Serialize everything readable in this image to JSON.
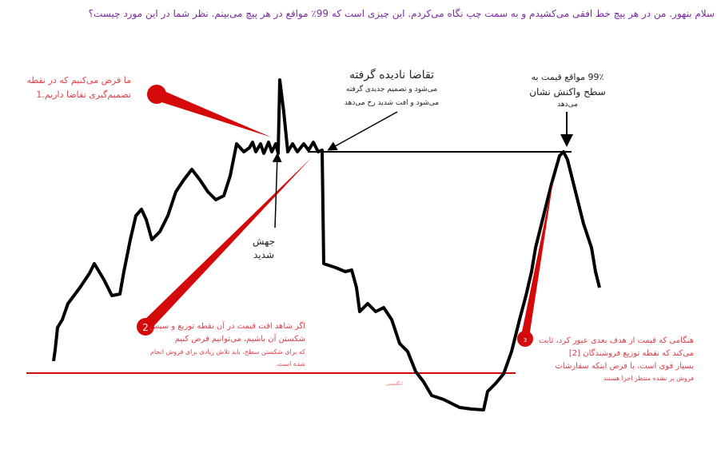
{
  "question": "سلام بنهور. من در هر پیچ خط افقی می‌کشیدم و به سمت چپ نگاه می‌کردم. این چیزی است که 99٪ مواقع در هر پیچ می‌بینم. نظر شما در این مورد چیست؟",
  "annotations": {
    "point1": {
      "number": "1",
      "lines": [
        "ما فرض می‌کنیم که در نقطه",
        "تصمیم‌گیری تقاضا داریم.1"
      ]
    },
    "unseen_demand": {
      "title": "تقاضا نادیده گرفته",
      "lines": [
        "می‌شود و تصمیم جدیدی گرفته",
        "می‌شود و افت شدید رخ می‌دهد"
      ]
    },
    "reaction": {
      "lines": [
        "99٪ مواقع قیمت به",
        "سطح واکنش نشان",
        "می‌دهد"
      ]
    },
    "spike": {
      "lines": [
        "جهش",
        "شدید"
      ]
    },
    "point2": {
      "number": "2",
      "lines": [
        "اگر شاهد افت قیمت در آن نقطه توزیع و سپس",
        "شکستن آن باشیم، می‌توانیم فرض کنیم",
        "که برای شکستن سطح، باید تلاش زیادی برای فروش انجام",
        "شده است."
      ]
    },
    "point3": {
      "number": "3",
      "lines": [
        "هنگامی که قیمت از هدف بعدی عبور کرد، ثابت",
        "می‌کند که نقطه توزیع فروشندگان [2]",
        "بسیار قوی است، با فرض اینکه سفارشات",
        "فروش پر نشده منتظر اجرا هستند"
      ]
    },
    "watermark": "انگلیسی"
  },
  "colors": {
    "accent_red": "#d40a0a",
    "text_red": "#e0404a",
    "question_purple": "#7a2aa0",
    "price_line": "#000000"
  }
}
